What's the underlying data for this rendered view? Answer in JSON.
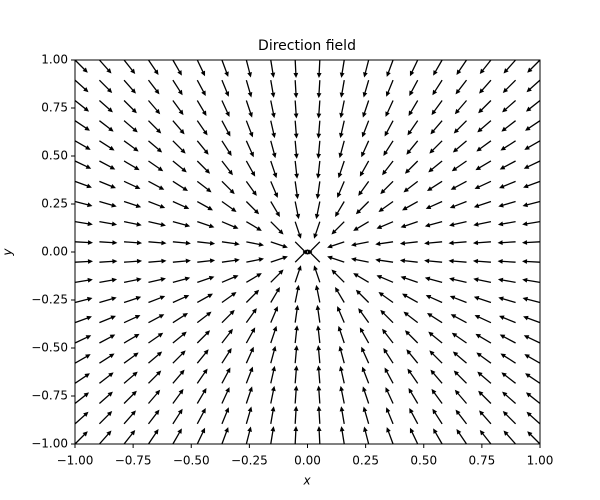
{
  "chart_data": {
    "type": "quiver",
    "title": "Direction field",
    "xlabel": "x",
    "ylabel": "y",
    "color": "#000000",
    "x": [
      -1,
      -0.895,
      -0.789,
      -0.684,
      -0.579,
      -0.474,
      -0.368,
      -0.263,
      -0.158,
      -0.053,
      0.053,
      0.158,
      0.263,
      0.368,
      0.474,
      0.579,
      0.684,
      0.789,
      0.895,
      1
    ],
    "y": [
      -1,
      -0.895,
      -0.789,
      -0.684,
      -0.579,
      -0.474,
      -0.368,
      -0.263,
      -0.158,
      -0.053,
      0.053,
      0.158,
      0.263,
      0.368,
      0.474,
      0.579,
      0.684,
      0.789,
      0.895,
      1
    ],
    "u": [
      [
        0.71,
        0.67,
        0.62,
        0.56,
        0.5,
        0.43,
        0.35,
        0.25,
        0.16,
        0.05,
        -0.05,
        -0.16,
        -0.25,
        -0.35,
        -0.43,
        -0.5,
        -0.56,
        -0.62,
        -0.67,
        -0.71
      ],
      [
        0.75,
        0.71,
        0.66,
        0.61,
        0.54,
        0.47,
        0.38,
        0.28,
        0.17,
        0.06,
        -0.06,
        -0.17,
        -0.28,
        -0.38,
        -0.47,
        -0.54,
        -0.61,
        -0.66,
        -0.71,
        -0.75
      ],
      [
        0.78,
        0.75,
        0.71,
        0.65,
        0.59,
        0.51,
        0.42,
        0.32,
        0.2,
        0.07,
        -0.07,
        -0.2,
        -0.32,
        -0.42,
        -0.51,
        -0.59,
        -0.65,
        -0.71,
        -0.75,
        -0.78
      ],
      [
        0.83,
        0.79,
        0.76,
        0.71,
        0.65,
        0.57,
        0.47,
        0.36,
        0.22,
        0.08,
        -0.08,
        -0.22,
        -0.36,
        -0.47,
        -0.57,
        -0.65,
        -0.71,
        -0.76,
        -0.79,
        -0.83
      ],
      [
        0.87,
        0.84,
        0.81,
        0.76,
        0.71,
        0.63,
        0.54,
        0.41,
        0.26,
        0.09,
        -0.09,
        -0.26,
        -0.41,
        -0.54,
        -0.63,
        -0.71,
        -0.76,
        -0.81,
        -0.84,
        -0.87
      ],
      [
        0.9,
        0.88,
        0.86,
        0.82,
        0.77,
        0.71,
        0.61,
        0.49,
        0.32,
        0.11,
        -0.11,
        -0.32,
        -0.49,
        -0.61,
        -0.71,
        -0.77,
        -0.82,
        -0.86,
        -0.88,
        -0.9
      ],
      [
        0.94,
        0.92,
        0.91,
        0.88,
        0.84,
        0.79,
        0.71,
        0.58,
        0.39,
        0.14,
        -0.14,
        -0.39,
        -0.58,
        -0.71,
        -0.79,
        -0.84,
        -0.88,
        -0.91,
        -0.92,
        -0.94
      ],
      [
        0.97,
        0.96,
        0.95,
        0.93,
        0.91,
        0.87,
        0.81,
        0.71,
        0.51,
        0.2,
        -0.2,
        -0.51,
        -0.71,
        -0.81,
        -0.87,
        -0.91,
        -0.93,
        -0.95,
        -0.96,
        -0.97
      ],
      [
        0.99,
        0.98,
        0.98,
        0.97,
        0.96,
        0.95,
        0.92,
        0.86,
        0.71,
        0.32,
        -0.32,
        -0.71,
        -0.86,
        -0.92,
        -0.95,
        -0.96,
        -0.97,
        -0.98,
        -0.98,
        -0.99
      ],
      [
        1,
        1,
        1,
        1,
        1,
        0.99,
        0.99,
        0.98,
        0.95,
        0.71,
        -0.71,
        -0.95,
        -0.98,
        -0.99,
        -0.99,
        -1,
        -1,
        -1,
        -1,
        -1
      ],
      [
        1,
        1,
        1,
        1,
        1,
        0.99,
        0.99,
        0.98,
        0.95,
        0.71,
        -0.71,
        -0.95,
        -0.98,
        -0.99,
        -0.99,
        -1,
        -1,
        -1,
        -1,
        -1
      ],
      [
        0.99,
        0.98,
        0.98,
        0.97,
        0.96,
        0.95,
        0.92,
        0.86,
        0.71,
        0.32,
        -0.32,
        -0.71,
        -0.86,
        -0.92,
        -0.95,
        -0.96,
        -0.97,
        -0.98,
        -0.98,
        -0.99
      ],
      [
        0.97,
        0.96,
        0.95,
        0.93,
        0.91,
        0.87,
        0.81,
        0.71,
        0.51,
        0.2,
        -0.2,
        -0.51,
        -0.71,
        -0.81,
        -0.87,
        -0.91,
        -0.93,
        -0.95,
        -0.96,
        -0.97
      ],
      [
        0.94,
        0.92,
        0.91,
        0.88,
        0.84,
        0.79,
        0.71,
        0.58,
        0.39,
        0.14,
        -0.14,
        -0.39,
        -0.58,
        -0.71,
        -0.79,
        -0.84,
        -0.88,
        -0.91,
        -0.92,
        -0.94
      ],
      [
        0.9,
        0.88,
        0.86,
        0.82,
        0.77,
        0.71,
        0.61,
        0.49,
        0.32,
        0.11,
        -0.11,
        -0.32,
        -0.49,
        -0.61,
        -0.71,
        -0.77,
        -0.82,
        -0.86,
        -0.88,
        -0.9
      ],
      [
        0.87,
        0.84,
        0.81,
        0.76,
        0.71,
        0.63,
        0.54,
        0.41,
        0.26,
        0.09,
        -0.09,
        -0.26,
        -0.41,
        -0.54,
        -0.63,
        -0.71,
        -0.76,
        -0.81,
        -0.84,
        -0.87
      ],
      [
        0.83,
        0.79,
        0.76,
        0.71,
        0.65,
        0.57,
        0.47,
        0.36,
        0.22,
        0.08,
        -0.08,
        -0.22,
        -0.36,
        -0.47,
        -0.57,
        -0.65,
        -0.71,
        -0.76,
        -0.79,
        -0.83
      ],
      [
        0.78,
        0.75,
        0.71,
        0.65,
        0.59,
        0.51,
        0.42,
        0.32,
        0.2,
        0.07,
        -0.07,
        -0.2,
        -0.32,
        -0.42,
        -0.51,
        -0.59,
        -0.65,
        -0.71,
        -0.75,
        -0.78
      ],
      [
        0.75,
        0.71,
        0.66,
        0.61,
        0.54,
        0.47,
        0.38,
        0.28,
        0.17,
        0.06,
        -0.06,
        -0.17,
        -0.28,
        -0.38,
        -0.47,
        -0.54,
        -0.61,
        -0.66,
        -0.71,
        -0.75
      ],
      [
        0.71,
        0.67,
        0.62,
        0.56,
        0.5,
        0.43,
        0.35,
        0.25,
        0.16,
        0.05,
        -0.05,
        -0.16,
        -0.25,
        -0.35,
        -0.43,
        -0.5,
        -0.56,
        -0.62,
        -0.67,
        -0.71
      ]
    ],
    "v": [
      [
        0.71,
        0.75,
        0.78,
        0.83,
        0.87,
        0.9,
        0.94,
        0.97,
        0.99,
        1,
        1,
        0.99,
        0.97,
        0.94,
        0.9,
        0.87,
        0.83,
        0.78,
        0.75,
        0.71
      ],
      [
        0.67,
        0.71,
        0.75,
        0.79,
        0.84,
        0.88,
        0.92,
        0.96,
        0.98,
        1,
        1,
        0.98,
        0.96,
        0.92,
        0.88,
        0.84,
        0.79,
        0.75,
        0.71,
        0.67
      ],
      [
        0.62,
        0.66,
        0.71,
        0.76,
        0.81,
        0.86,
        0.91,
        0.95,
        0.98,
        1,
        1,
        0.98,
        0.95,
        0.91,
        0.86,
        0.81,
        0.76,
        0.71,
        0.66,
        0.62
      ],
      [
        0.56,
        0.61,
        0.65,
        0.71,
        0.76,
        0.82,
        0.88,
        0.93,
        0.97,
        1,
        1,
        0.97,
        0.93,
        0.88,
        0.82,
        0.76,
        0.71,
        0.65,
        0.61,
        0.56
      ],
      [
        0.5,
        0.54,
        0.59,
        0.65,
        0.71,
        0.77,
        0.84,
        0.91,
        0.96,
        1,
        1,
        0.96,
        0.91,
        0.84,
        0.77,
        0.71,
        0.65,
        0.59,
        0.54,
        0.5
      ],
      [
        0.43,
        0.47,
        0.51,
        0.57,
        0.63,
        0.71,
        0.79,
        0.87,
        0.95,
        0.99,
        0.99,
        0.95,
        0.87,
        0.79,
        0.71,
        0.63,
        0.57,
        0.51,
        0.47,
        0.43
      ],
      [
        0.35,
        0.38,
        0.42,
        0.47,
        0.54,
        0.61,
        0.71,
        0.81,
        0.92,
        0.99,
        0.99,
        0.92,
        0.81,
        0.71,
        0.61,
        0.54,
        0.47,
        0.42,
        0.38,
        0.35
      ],
      [
        0.25,
        0.28,
        0.32,
        0.36,
        0.41,
        0.49,
        0.58,
        0.71,
        0.86,
        0.98,
        0.98,
        0.86,
        0.71,
        0.58,
        0.49,
        0.41,
        0.36,
        0.32,
        0.28,
        0.25
      ],
      [
        0.16,
        0.17,
        0.2,
        0.22,
        0.26,
        0.32,
        0.39,
        0.51,
        0.71,
        0.95,
        0.95,
        0.71,
        0.51,
        0.39,
        0.32,
        0.26,
        0.22,
        0.2,
        0.17,
        0.16
      ],
      [
        0.05,
        0.06,
        0.07,
        0.08,
        0.09,
        0.11,
        0.14,
        0.2,
        0.32,
        0.71,
        0.71,
        0.32,
        0.2,
        0.14,
        0.11,
        0.09,
        0.08,
        0.07,
        0.06,
        0.05
      ],
      [
        -0.05,
        -0.06,
        -0.07,
        -0.08,
        -0.09,
        -0.11,
        -0.14,
        -0.2,
        -0.32,
        -0.71,
        -0.71,
        -0.32,
        -0.2,
        -0.14,
        -0.11,
        -0.09,
        -0.08,
        -0.07,
        -0.06,
        -0.05
      ],
      [
        -0.16,
        -0.17,
        -0.2,
        -0.22,
        -0.26,
        -0.32,
        -0.39,
        -0.51,
        -0.71,
        -0.95,
        -0.95,
        -0.71,
        -0.51,
        -0.39,
        -0.32,
        -0.26,
        -0.22,
        -0.2,
        -0.17,
        -0.16
      ],
      [
        -0.25,
        -0.28,
        -0.32,
        -0.36,
        -0.41,
        -0.49,
        -0.58,
        -0.71,
        -0.86,
        -0.98,
        -0.98,
        -0.86,
        -0.71,
        -0.58,
        -0.49,
        -0.41,
        -0.36,
        -0.32,
        -0.28,
        -0.25
      ],
      [
        -0.35,
        -0.38,
        -0.42,
        -0.47,
        -0.54,
        -0.61,
        -0.71,
        -0.81,
        -0.92,
        -0.99,
        -0.99,
        -0.92,
        -0.81,
        -0.71,
        -0.61,
        -0.54,
        -0.47,
        -0.42,
        -0.38,
        -0.35
      ],
      [
        -0.43,
        -0.47,
        -0.51,
        -0.57,
        -0.63,
        -0.71,
        -0.79,
        -0.87,
        -0.95,
        -0.99,
        -0.99,
        -0.95,
        -0.87,
        -0.79,
        -0.71,
        -0.63,
        -0.57,
        -0.51,
        -0.47,
        -0.43
      ],
      [
        -0.5,
        -0.54,
        -0.59,
        -0.65,
        -0.71,
        -0.77,
        -0.84,
        -0.91,
        -0.96,
        -1,
        -1,
        -0.96,
        -0.91,
        -0.84,
        -0.77,
        -0.71,
        -0.65,
        -0.59,
        -0.54,
        -0.5
      ],
      [
        -0.56,
        -0.61,
        -0.65,
        -0.71,
        -0.76,
        -0.82,
        -0.88,
        -0.93,
        -0.97,
        -1,
        -1,
        -0.97,
        -0.93,
        -0.88,
        -0.82,
        -0.76,
        -0.71,
        -0.65,
        -0.61,
        -0.56
      ],
      [
        -0.62,
        -0.66,
        -0.71,
        -0.76,
        -0.81,
        -0.86,
        -0.91,
        -0.95,
        -0.98,
        -1,
        -1,
        -0.98,
        -0.95,
        -0.91,
        -0.86,
        -0.81,
        -0.76,
        -0.71,
        -0.66,
        -0.62
      ],
      [
        -0.67,
        -0.71,
        -0.75,
        -0.79,
        -0.84,
        -0.88,
        -0.92,
        -0.96,
        -0.98,
        -1,
        -1,
        -0.98,
        -0.96,
        -0.92,
        -0.88,
        -0.84,
        -0.79,
        -0.75,
        -0.71,
        -0.67
      ],
      [
        -0.71,
        -0.75,
        -0.78,
        -0.83,
        -0.87,
        -0.9,
        -0.94,
        -0.97,
        -0.99,
        -1,
        -1,
        -0.99,
        -0.97,
        -0.94,
        -0.9,
        -0.87,
        -0.83,
        -0.78,
        -0.75,
        -0.71
      ]
    ],
    "xlim": [
      -1,
      1
    ],
    "ylim": [
      -1,
      1
    ],
    "xticks": [
      {
        "value": -1,
        "label": "−1.00"
      },
      {
        "value": -0.75,
        "label": "−0.75"
      },
      {
        "value": -0.5,
        "label": "−0.50"
      },
      {
        "value": -0.25,
        "label": "−0.25"
      },
      {
        "value": 0,
        "label": "0.00"
      },
      {
        "value": 0.25,
        "label": "0.25"
      },
      {
        "value": 0.5,
        "label": "0.50"
      },
      {
        "value": 0.75,
        "label": "0.75"
      },
      {
        "value": 1,
        "label": "1.00"
      }
    ],
    "yticks": [
      {
        "value": -1,
        "label": "−1.00"
      },
      {
        "value": -0.75,
        "label": "−0.75"
      },
      {
        "value": -0.5,
        "label": "−0.50"
      },
      {
        "value": -0.25,
        "label": "−0.25"
      },
      {
        "value": 0,
        "label": "0.00"
      },
      {
        "value": 0.25,
        "label": "0.25"
      },
      {
        "value": 0.5,
        "label": "0.50"
      },
      {
        "value": 0.75,
        "label": "0.75"
      },
      {
        "value": 1,
        "label": "1.00"
      }
    ]
  }
}
